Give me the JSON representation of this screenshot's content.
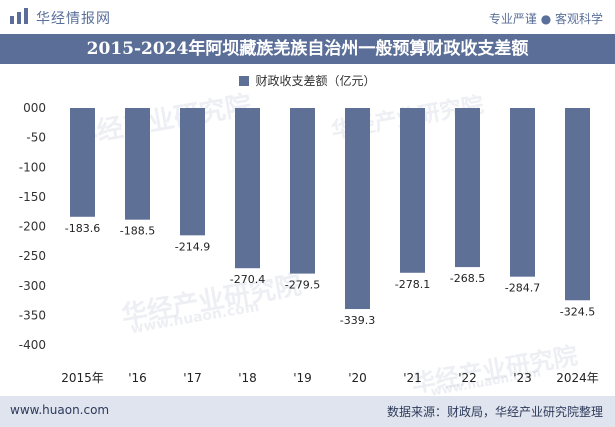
{
  "header": {
    "brand": "华经情报网",
    "tagline": "专业严谨 ● 客观科学"
  },
  "watermark": {
    "text": "华经产业研究院",
    "url": "www.huaon.com"
  },
  "footer": {
    "site": "www.huaon.com",
    "source": "数据来源：财政局，华经产业研究院整理"
  },
  "colors": {
    "bar": "#5f7097",
    "title_bg": "#5b6e98",
    "footer_bg": "#dfe4ee"
  },
  "chart_data": {
    "type": "bar",
    "title": "2015-2024年阿坝藏族羌族自治州一般预算财政收支差额",
    "legend": [
      "财政收支差额（亿元）"
    ],
    "legend_position": "top-center",
    "categories": [
      "2015年",
      "'16",
      "'17",
      "'18",
      "'19",
      "'20",
      "'21",
      "'22",
      "'23",
      "2024年"
    ],
    "series": [
      {
        "name": "财政收支差额（亿元）",
        "values": [
          -183.6,
          -188.5,
          -214.9,
          -270.4,
          -279.5,
          -339.3,
          -278.1,
          -268.5,
          -284.7,
          -324.5
        ],
        "labels": [
          "-183.6",
          "-188.5",
          "-214.9",
          "-270.4",
          "-279.5",
          "-339.3",
          "-278.1",
          "-268.5",
          "-284.7",
          "-324.5"
        ]
      }
    ],
    "y_ticks": [
      "000",
      "-50",
      "-100",
      "-150",
      "-200",
      "-250",
      "-300",
      "-350",
      "-400"
    ],
    "ylim": [
      -400,
      0
    ],
    "grid": false,
    "xlabel": "",
    "ylabel": ""
  }
}
